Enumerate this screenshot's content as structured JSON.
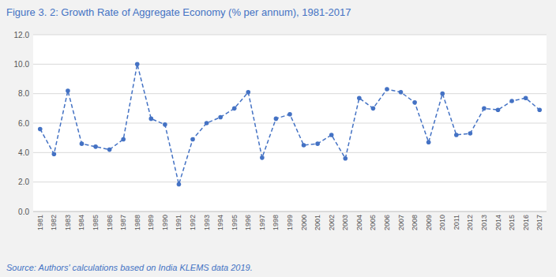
{
  "chart_data": {
    "type": "line",
    "title": "Figure 3. 2: Growth Rate of Aggregate Economy (% per annum), 1981-2017",
    "source": "Source: Authors' calculations based on India KLEMS data 2019.",
    "x": [
      1981,
      1982,
      1983,
      1984,
      1985,
      1986,
      1987,
      1988,
      1989,
      1990,
      1991,
      1992,
      1993,
      1994,
      1995,
      1996,
      1997,
      1998,
      1999,
      2000,
      2001,
      2002,
      2003,
      2004,
      2005,
      2006,
      2007,
      2008,
      2009,
      2010,
      2011,
      2012,
      2013,
      2014,
      2015,
      2016,
      2017
    ],
    "values": [
      5.6,
      3.9,
      8.2,
      4.6,
      4.4,
      4.2,
      4.9,
      10.0,
      6.3,
      5.9,
      1.85,
      4.9,
      6.0,
      6.4,
      7.0,
      8.1,
      3.65,
      6.3,
      6.6,
      4.5,
      4.6,
      5.2,
      3.6,
      7.7,
      7.0,
      8.3,
      8.1,
      7.4,
      4.7,
      8.0,
      5.2,
      5.3,
      7.0,
      6.9,
      7.5,
      7.7,
      6.9
    ],
    "color": "#4472C4",
    "marker": "circle",
    "line_style": "dashed",
    "xlim": [
      1980.5,
      2017.5
    ],
    "xticks": [
      1981,
      1982,
      1983,
      1984,
      1985,
      1986,
      1987,
      1988,
      1989,
      1990,
      1991,
      1992,
      1993,
      1994,
      1995,
      1996,
      1997,
      1998,
      1999,
      2000,
      2001,
      2002,
      2003,
      2004,
      2005,
      2006,
      2007,
      2008,
      2009,
      2010,
      2011,
      2012,
      2013,
      2014,
      2015,
      2016,
      2017
    ],
    "ylim": [
      0.0,
      12.0
    ],
    "yticks": [
      {
        "value": 0.0,
        "label": "0.0"
      },
      {
        "value": 2.0,
        "label": "2.0"
      },
      {
        "value": 4.0,
        "label": "4.0"
      },
      {
        "value": 6.0,
        "label": "6.0"
      },
      {
        "value": 8.0,
        "label": "8.0"
      },
      {
        "value": 10.0,
        "label": "10.0"
      },
      {
        "value": 12.0,
        "label": "12.0"
      }
    ],
    "grid": true
  }
}
